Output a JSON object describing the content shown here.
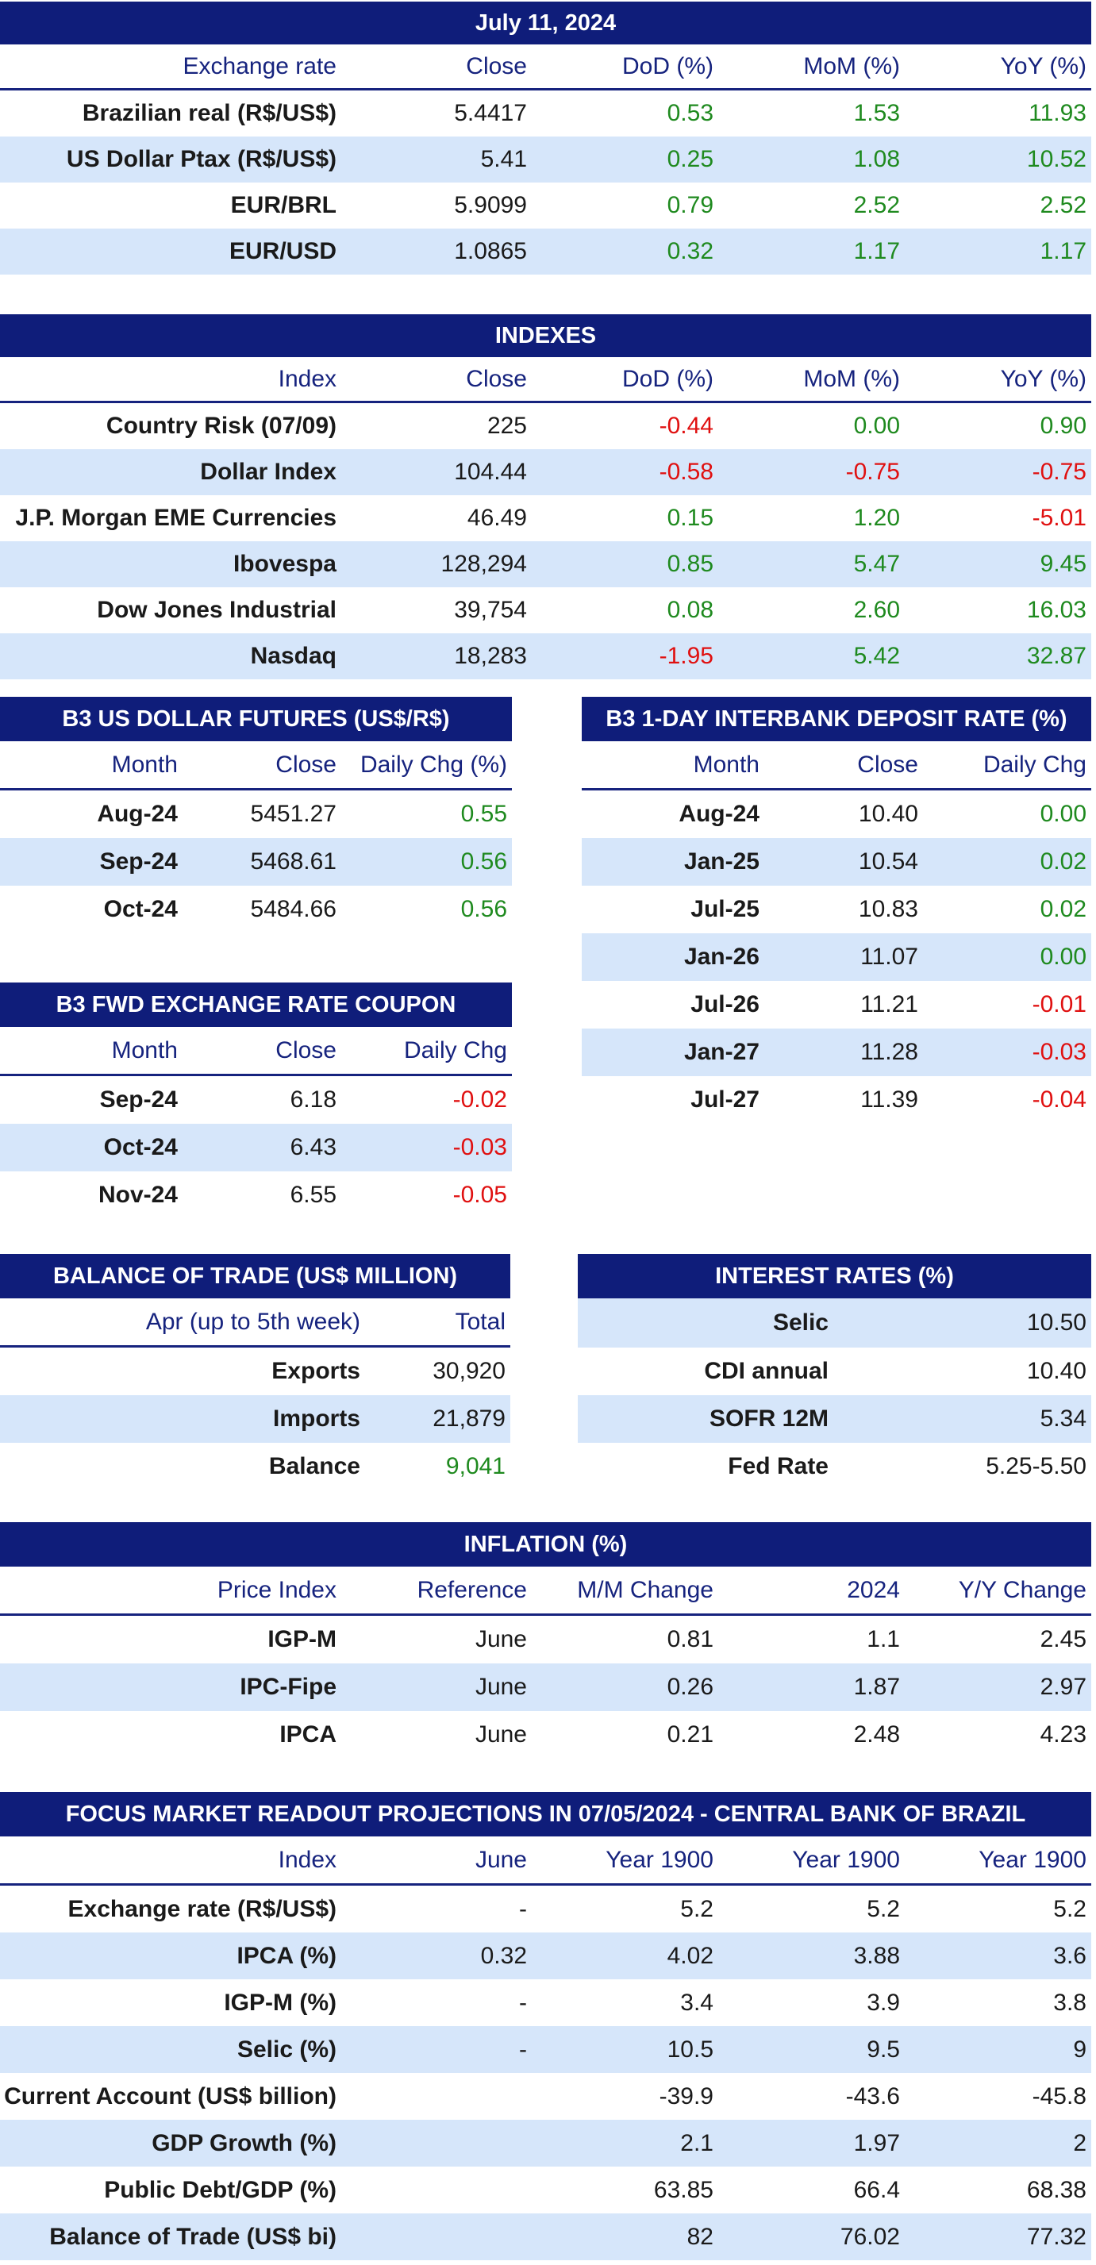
{
  "exchange": {
    "title": "July 11, 2024",
    "headers": [
      "Exchange rate",
      "Close",
      "DoD (%)",
      "MoM (%)",
      "YoY (%)"
    ],
    "rows": [
      {
        "name": "Brazilian real (R$/US$)",
        "close": "5.4417",
        "dod": "0.53",
        "mom": "1.53",
        "yoy": "11.93"
      },
      {
        "name": "US Dollar Ptax (R$/US$)",
        "close": "5.41",
        "dod": "0.25",
        "mom": "1.08",
        "yoy": "10.52"
      },
      {
        "name": "EUR/BRL",
        "close": "5.9099",
        "dod": "0.79",
        "mom": "2.52",
        "yoy": "2.52"
      },
      {
        "name": "EUR/USD",
        "close": "1.0865",
        "dod": "0.32",
        "mom": "1.17",
        "yoy": "1.17"
      }
    ]
  },
  "indexes": {
    "title": "INDEXES",
    "headers": [
      "Index",
      "Close",
      "DoD (%)",
      "MoM (%)",
      "YoY (%)"
    ],
    "rows": [
      {
        "name": "Country Risk (07/09)",
        "close": "225",
        "dod": "-0.44",
        "mom": "0.00",
        "yoy": "0.90"
      },
      {
        "name": "Dollar Index",
        "close": "104.44",
        "dod": "-0.58",
        "mom": "-0.75",
        "yoy": "-0.75"
      },
      {
        "name": "J.P. Morgan EME Currencies",
        "close": "46.49",
        "dod": "0.15",
        "mom": "1.20",
        "yoy": "-5.01"
      },
      {
        "name": "Ibovespa",
        "close": "128,294",
        "dod": "0.85",
        "mom": "5.47",
        "yoy": "9.45"
      },
      {
        "name": "Dow Jones Industrial",
        "close": "39,754",
        "dod": "0.08",
        "mom": "2.60",
        "yoy": "16.03"
      },
      {
        "name": "Nasdaq",
        "close": "18,283",
        "dod": "-1.95",
        "mom": "5.42",
        "yoy": "32.87"
      }
    ]
  },
  "futures": {
    "title": "B3 US DOLLAR FUTURES (US$/R$)",
    "headers": [
      "Month",
      "Close",
      "Daily Chg (%)"
    ],
    "rows": [
      {
        "month": "Aug-24",
        "close": "5451.27",
        "chg": "0.55"
      },
      {
        "month": "Sep-24",
        "close": "5468.61",
        "chg": "0.56"
      },
      {
        "month": "Oct-24",
        "close": "5484.66",
        "chg": "0.56"
      }
    ]
  },
  "interbank": {
    "title": "B3 1-DAY INTERBANK DEPOSIT RATE (%)",
    "headers": [
      "Month",
      "Close",
      "Daily Chg"
    ],
    "rows": [
      {
        "month": "Aug-24",
        "close": "10.40",
        "chg": "0.00"
      },
      {
        "month": "Jan-25",
        "close": "10.54",
        "chg": "0.02"
      },
      {
        "month": "Jul-25",
        "close": "10.83",
        "chg": "0.02"
      },
      {
        "month": "Jan-26",
        "close": "11.07",
        "chg": "0.00"
      },
      {
        "month": "Jul-26",
        "close": "11.21",
        "chg": "-0.01"
      },
      {
        "month": "Jan-27",
        "close": "11.28",
        "chg": "-0.03"
      },
      {
        "month": "Jul-27",
        "close": "11.39",
        "chg": "-0.04"
      }
    ]
  },
  "coupon": {
    "title": "B3 FWD EXCHANGE RATE COUPON",
    "headers": [
      "Month",
      "Close",
      "Daily Chg"
    ],
    "rows": [
      {
        "month": "Sep-24",
        "close": "6.18",
        "chg": "-0.02"
      },
      {
        "month": "Oct-24",
        "close": "6.43",
        "chg": "-0.03"
      },
      {
        "month": "Nov-24",
        "close": "6.55",
        "chg": "-0.05"
      }
    ]
  },
  "trade": {
    "title": "BALANCE OF TRADE (US$ MILLION)",
    "headers": [
      "Apr (up to 5th week)",
      "Total"
    ],
    "rows": [
      {
        "name": "Exports",
        "value": "30,920"
      },
      {
        "name": "Imports",
        "value": "21,879"
      },
      {
        "name": "Balance",
        "value": "9,041"
      }
    ]
  },
  "rates": {
    "title": "INTEREST RATES (%)",
    "rows": [
      {
        "name": "Selic",
        "value": "10.50"
      },
      {
        "name": "CDI annual",
        "value": "10.40"
      },
      {
        "name": "SOFR 12M",
        "value": "5.34"
      },
      {
        "name": "Fed Rate",
        "value": "5.25-5.50"
      }
    ]
  },
  "inflation": {
    "title": "INFLATION (%)",
    "headers": [
      "Price Index",
      "Reference",
      "M/M Change",
      "2024",
      "Y/Y Change"
    ],
    "rows": [
      {
        "name": "IGP-M",
        "ref": "June",
        "mm": "0.81",
        "ytd": "1.1",
        "yy": "2.45"
      },
      {
        "name": "IPC-Fipe",
        "ref": "June",
        "mm": "0.26",
        "ytd": "1.87",
        "yy": "2.97"
      },
      {
        "name": "IPCA",
        "ref": "June",
        "mm": "0.21",
        "ytd": "2.48",
        "yy": "4.23"
      }
    ]
  },
  "focus": {
    "title": "FOCUS MARKET READOUT PROJECTIONS IN 07/05/2024 - CENTRAL BANK OF BRAZIL",
    "headers": [
      "Index",
      "June",
      "Year 1900",
      "Year 1900",
      "Year 1900"
    ],
    "rows": [
      {
        "name": "Exchange rate (R$/US$)",
        "june": "-",
        "y1": "5.2",
        "y2": "5.2",
        "y3": "5.2"
      },
      {
        "name": "IPCA (%)",
        "june": "0.32",
        "y1": "4.02",
        "y2": "3.88",
        "y3": "3.6"
      },
      {
        "name": "IGP-M (%)",
        "june": "-",
        "y1": "3.4",
        "y2": "3.9",
        "y3": "3.8"
      },
      {
        "name": "Selic (%)",
        "june": "-",
        "y1": "10.5",
        "y2": "9.5",
        "y3": "9"
      },
      {
        "name": "Current Account (US$ billion)",
        "june": "",
        "y1": "-39.9",
        "y2": "-43.6",
        "y3": "-45.8"
      },
      {
        "name": "GDP Growth (%)",
        "june": "",
        "y1": "2.1",
        "y2": "1.97",
        "y3": "2"
      },
      {
        "name": "Public Debt/GDP (%)",
        "june": "",
        "y1": "63.85",
        "y2": "66.4",
        "y3": "68.38"
      },
      {
        "name": "Balance of Trade (US$ bi)",
        "june": "",
        "y1": "82",
        "y2": "76.02",
        "y3": "77.32"
      }
    ]
  },
  "colors": {
    "header_bg": "#0f1d7a",
    "header_text": "#16237e",
    "alt_row": "#d6e6fa",
    "positive": "#1f8a1f",
    "negative": "#e01010"
  }
}
